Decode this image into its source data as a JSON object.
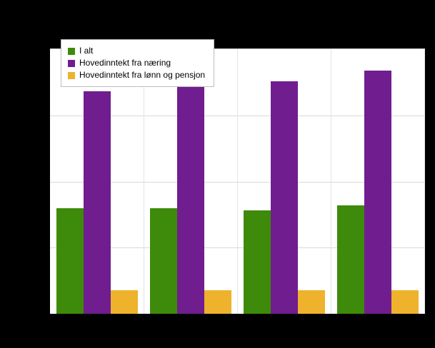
{
  "chart": {
    "background_color": "#000000",
    "plot_background_color": "#ffffff",
    "gridline_color": "#d8d8d8"
  },
  "chart_data": {
    "type": "bar",
    "title": "",
    "xlabel": "",
    "ylabel": "",
    "categories": [
      "",
      "",
      "",
      ""
    ],
    "series": [
      {
        "name": "I alt",
        "color": "#3e8a0a",
        "values": [
          40,
          40,
          39,
          41
        ]
      },
      {
        "name": "Hovedinntekt fra næring",
        "color": "#701d8f",
        "values": [
          84,
          86,
          88,
          92
        ]
      },
      {
        "name": "Hovedinntekt fra lønn og pensjon",
        "color": "#eeb22d",
        "values": [
          9,
          9,
          9,
          9
        ]
      }
    ],
    "ylim": [
      0,
      100
    ],
    "value_unit": "percent of y-axis maximum (axis tick labels, title and category labels are not legible in the screenshot; rendered black-on-black)",
    "grid": true,
    "legend_position": "top-left",
    "group_count": 4,
    "bars_per_group": 3
  }
}
